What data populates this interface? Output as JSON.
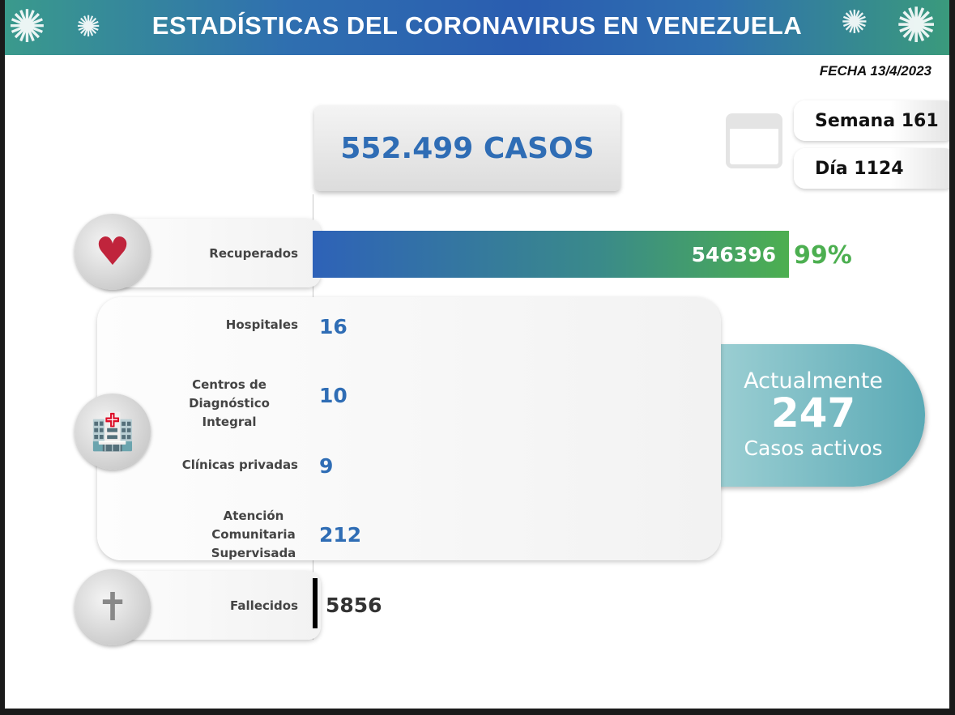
{
  "header": {
    "title": "ESTADÍSTICAS DEL CORONAVIRUS EN VENEZUELA",
    "date": "FECHA 13/4/2023"
  },
  "total_cases": "552.499 CASOS",
  "calendar": {
    "icon": "calendar-icon",
    "week": "Semana 161",
    "day": "Día 1124"
  },
  "recovered": {
    "label": "Recuperados",
    "value": "546396",
    "percent": "99%",
    "fill_percent": 99,
    "icon": "heart-pulse-icon"
  },
  "facilities": {
    "icon": "hospital-icon",
    "items": [
      {
        "label": "Hospitales",
        "value": "16"
      },
      {
        "label": "Centros de Diagnóstico Integral",
        "value": "10"
      },
      {
        "label": "Clínicas privadas",
        "value": "9"
      },
      {
        "label": "Atención Comunitaria Supervisada",
        "value": "212"
      }
    ]
  },
  "active": {
    "prefix": "Actualmente",
    "value": "247",
    "suffix": "Casos activos"
  },
  "deaths": {
    "label": "Fallecidos",
    "value": "5856",
    "icon": "gravestone-icon"
  },
  "colors": {
    "blue": "#2f6db5",
    "green": "#4caf50",
    "teal": "#5aa9b5"
  }
}
